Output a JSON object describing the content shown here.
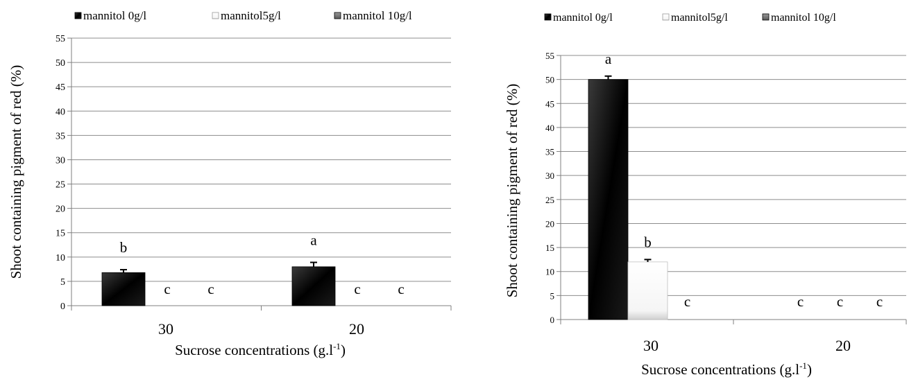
{
  "chart_data": [
    {
      "type": "bar",
      "categories": [
        "30",
        "20"
      ],
      "xlabel": "Sucrose concentrations (g.l",
      "xlabel_sup": "-1",
      "xlabel_end": ")",
      "ylabel": "Shoot containing pigment of red (%)",
      "ylim": [
        0,
        55
      ],
      "yticks": [
        "0",
        "5",
        "10",
        "15",
        "20",
        "25",
        "30",
        "35",
        "40",
        "45",
        "50",
        "55"
      ],
      "grid": true,
      "legend_position": "top",
      "series": [
        {
          "name": "mannitol 0g/l",
          "values": [
            6.8,
            8.0
          ],
          "errors": [
            0.6,
            0.9
          ],
          "letters": [
            "b",
            "a"
          ],
          "color": "#111111"
        },
        {
          "name": "mannitol5g/l",
          "values": [
            0,
            0
          ],
          "errors": [
            0,
            0
          ],
          "letters": [
            "c",
            "c"
          ],
          "color": "#d9d9d9"
        },
        {
          "name": "mannitol 10g/l",
          "values": [
            0,
            0
          ],
          "errors": [
            0,
            0
          ],
          "letters": [
            "c",
            "c"
          ],
          "color": "#7f7f7f"
        }
      ]
    },
    {
      "type": "bar",
      "categories": [
        "30",
        "20"
      ],
      "xlabel": "Sucrose concentrations (g.l",
      "xlabel_sup": "-1",
      "xlabel_end": ")",
      "ylabel": "Shoot containing pigment of red (%)",
      "ylim": [
        0,
        55
      ],
      "yticks": [
        "0",
        "5",
        "10",
        "15",
        "20",
        "25",
        "30",
        "35",
        "40",
        "45",
        "50",
        "55"
      ],
      "grid": true,
      "legend_position": "top",
      "series": [
        {
          "name": "mannitol 0g/l",
          "values": [
            50,
            0
          ],
          "errors": [
            0.7,
            0
          ],
          "letters": [
            "a",
            "c"
          ],
          "color": "#111111"
        },
        {
          "name": "mannitol5g/l",
          "values": [
            12,
            0
          ],
          "errors": [
            0.5,
            0
          ],
          "letters": [
            "b",
            "c"
          ],
          "color": "#f4f4f4"
        },
        {
          "name": "mannitol 10g/l",
          "values": [
            0,
            0
          ],
          "errors": [
            0,
            0
          ],
          "letters": [
            "c",
            "c"
          ],
          "color": "#7f7f7f"
        }
      ]
    }
  ]
}
